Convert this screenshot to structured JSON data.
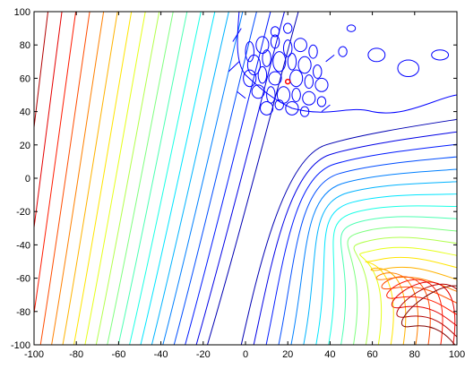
{
  "chart_data": {
    "type": "contour",
    "title": "",
    "xlabel": "",
    "ylabel": "",
    "xlim": [
      -100,
      100
    ],
    "ylim": [
      -100,
      100
    ],
    "xticks": [
      -100,
      -80,
      -60,
      -40,
      -20,
      0,
      20,
      40,
      60,
      80,
      100
    ],
    "yticks": [
      100,
      80,
      60,
      40,
      20,
      0,
      -20,
      -40,
      -60,
      -80,
      -100
    ],
    "xtick_labels": [
      "-100",
      "-80",
      "-60",
      "-40",
      "-20",
      "0",
      "20",
      "40",
      "60",
      "80",
      "100"
    ],
    "ytick_labels": [
      "100",
      "80",
      "60",
      "40",
      "20",
      "0",
      "-20",
      "-40",
      "-60",
      "-80",
      "-100"
    ],
    "grid": false,
    "colormap": "jet",
    "marker": {
      "x": 20,
      "y": 58,
      "color": "#ff0000"
    },
    "lowest_level_color": "#0000ff",
    "highest_level_color": "#ff0000"
  }
}
